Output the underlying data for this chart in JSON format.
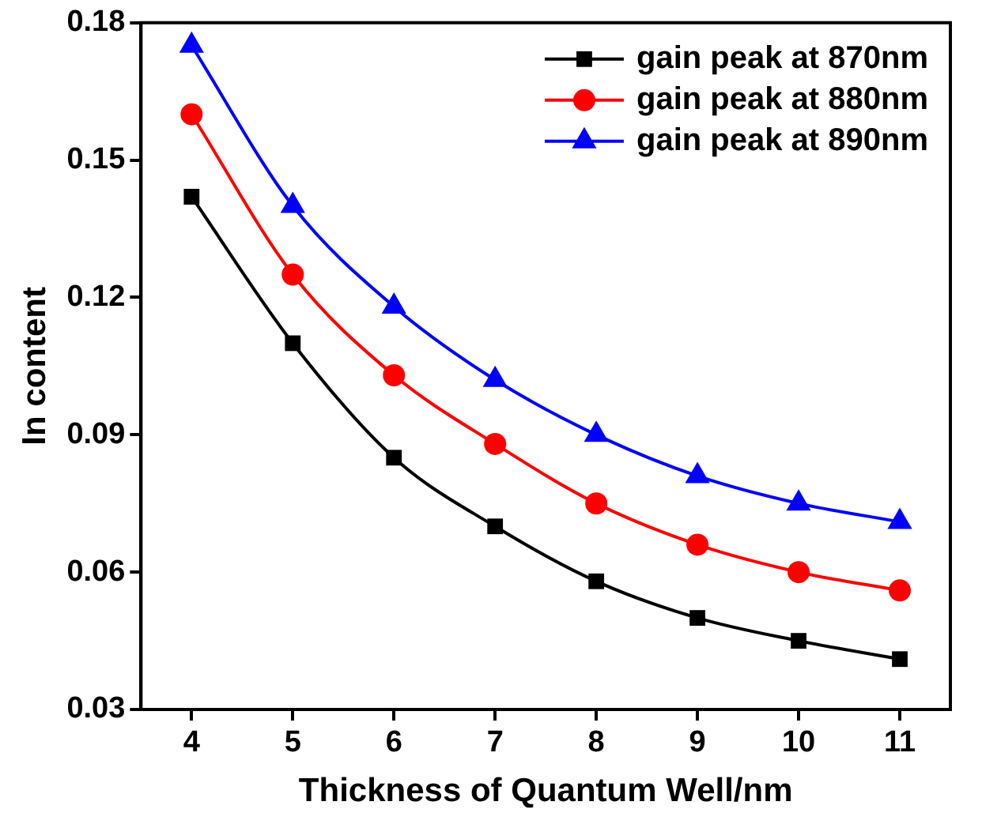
{
  "chart_data": {
    "type": "line",
    "xlabel": "Thickness of Quantum Well/nm",
    "ylabel": "In content",
    "x": [
      4,
      5,
      6,
      7,
      8,
      9,
      10,
      11
    ],
    "series": [
      {
        "name": "gain peak at 870nm",
        "color": "#000000",
        "marker": "square",
        "values": [
          0.142,
          0.11,
          0.085,
          0.07,
          0.058,
          0.05,
          0.045,
          0.041
        ]
      },
      {
        "name": "gain peak at 880nm",
        "color": "#ff0000",
        "marker": "circle",
        "values": [
          0.16,
          0.125,
          0.103,
          0.088,
          0.075,
          0.066,
          0.06,
          0.056
        ]
      },
      {
        "name": "gain peak at 890nm",
        "color": "#0000ff",
        "marker": "triangle",
        "values": [
          0.175,
          0.14,
          0.118,
          0.102,
          0.09,
          0.081,
          0.075,
          0.071
        ]
      }
    ],
    "xlim": [
      3.5,
      11.5
    ],
    "xticks": [
      4,
      5,
      6,
      7,
      8,
      9,
      10,
      11
    ],
    "ylim": [
      0.03,
      0.18
    ],
    "yticks": [
      0.03,
      0.06,
      0.09,
      0.12,
      0.15,
      0.18
    ],
    "grid": false,
    "legend": "top right",
    "line_style": "solid"
  }
}
